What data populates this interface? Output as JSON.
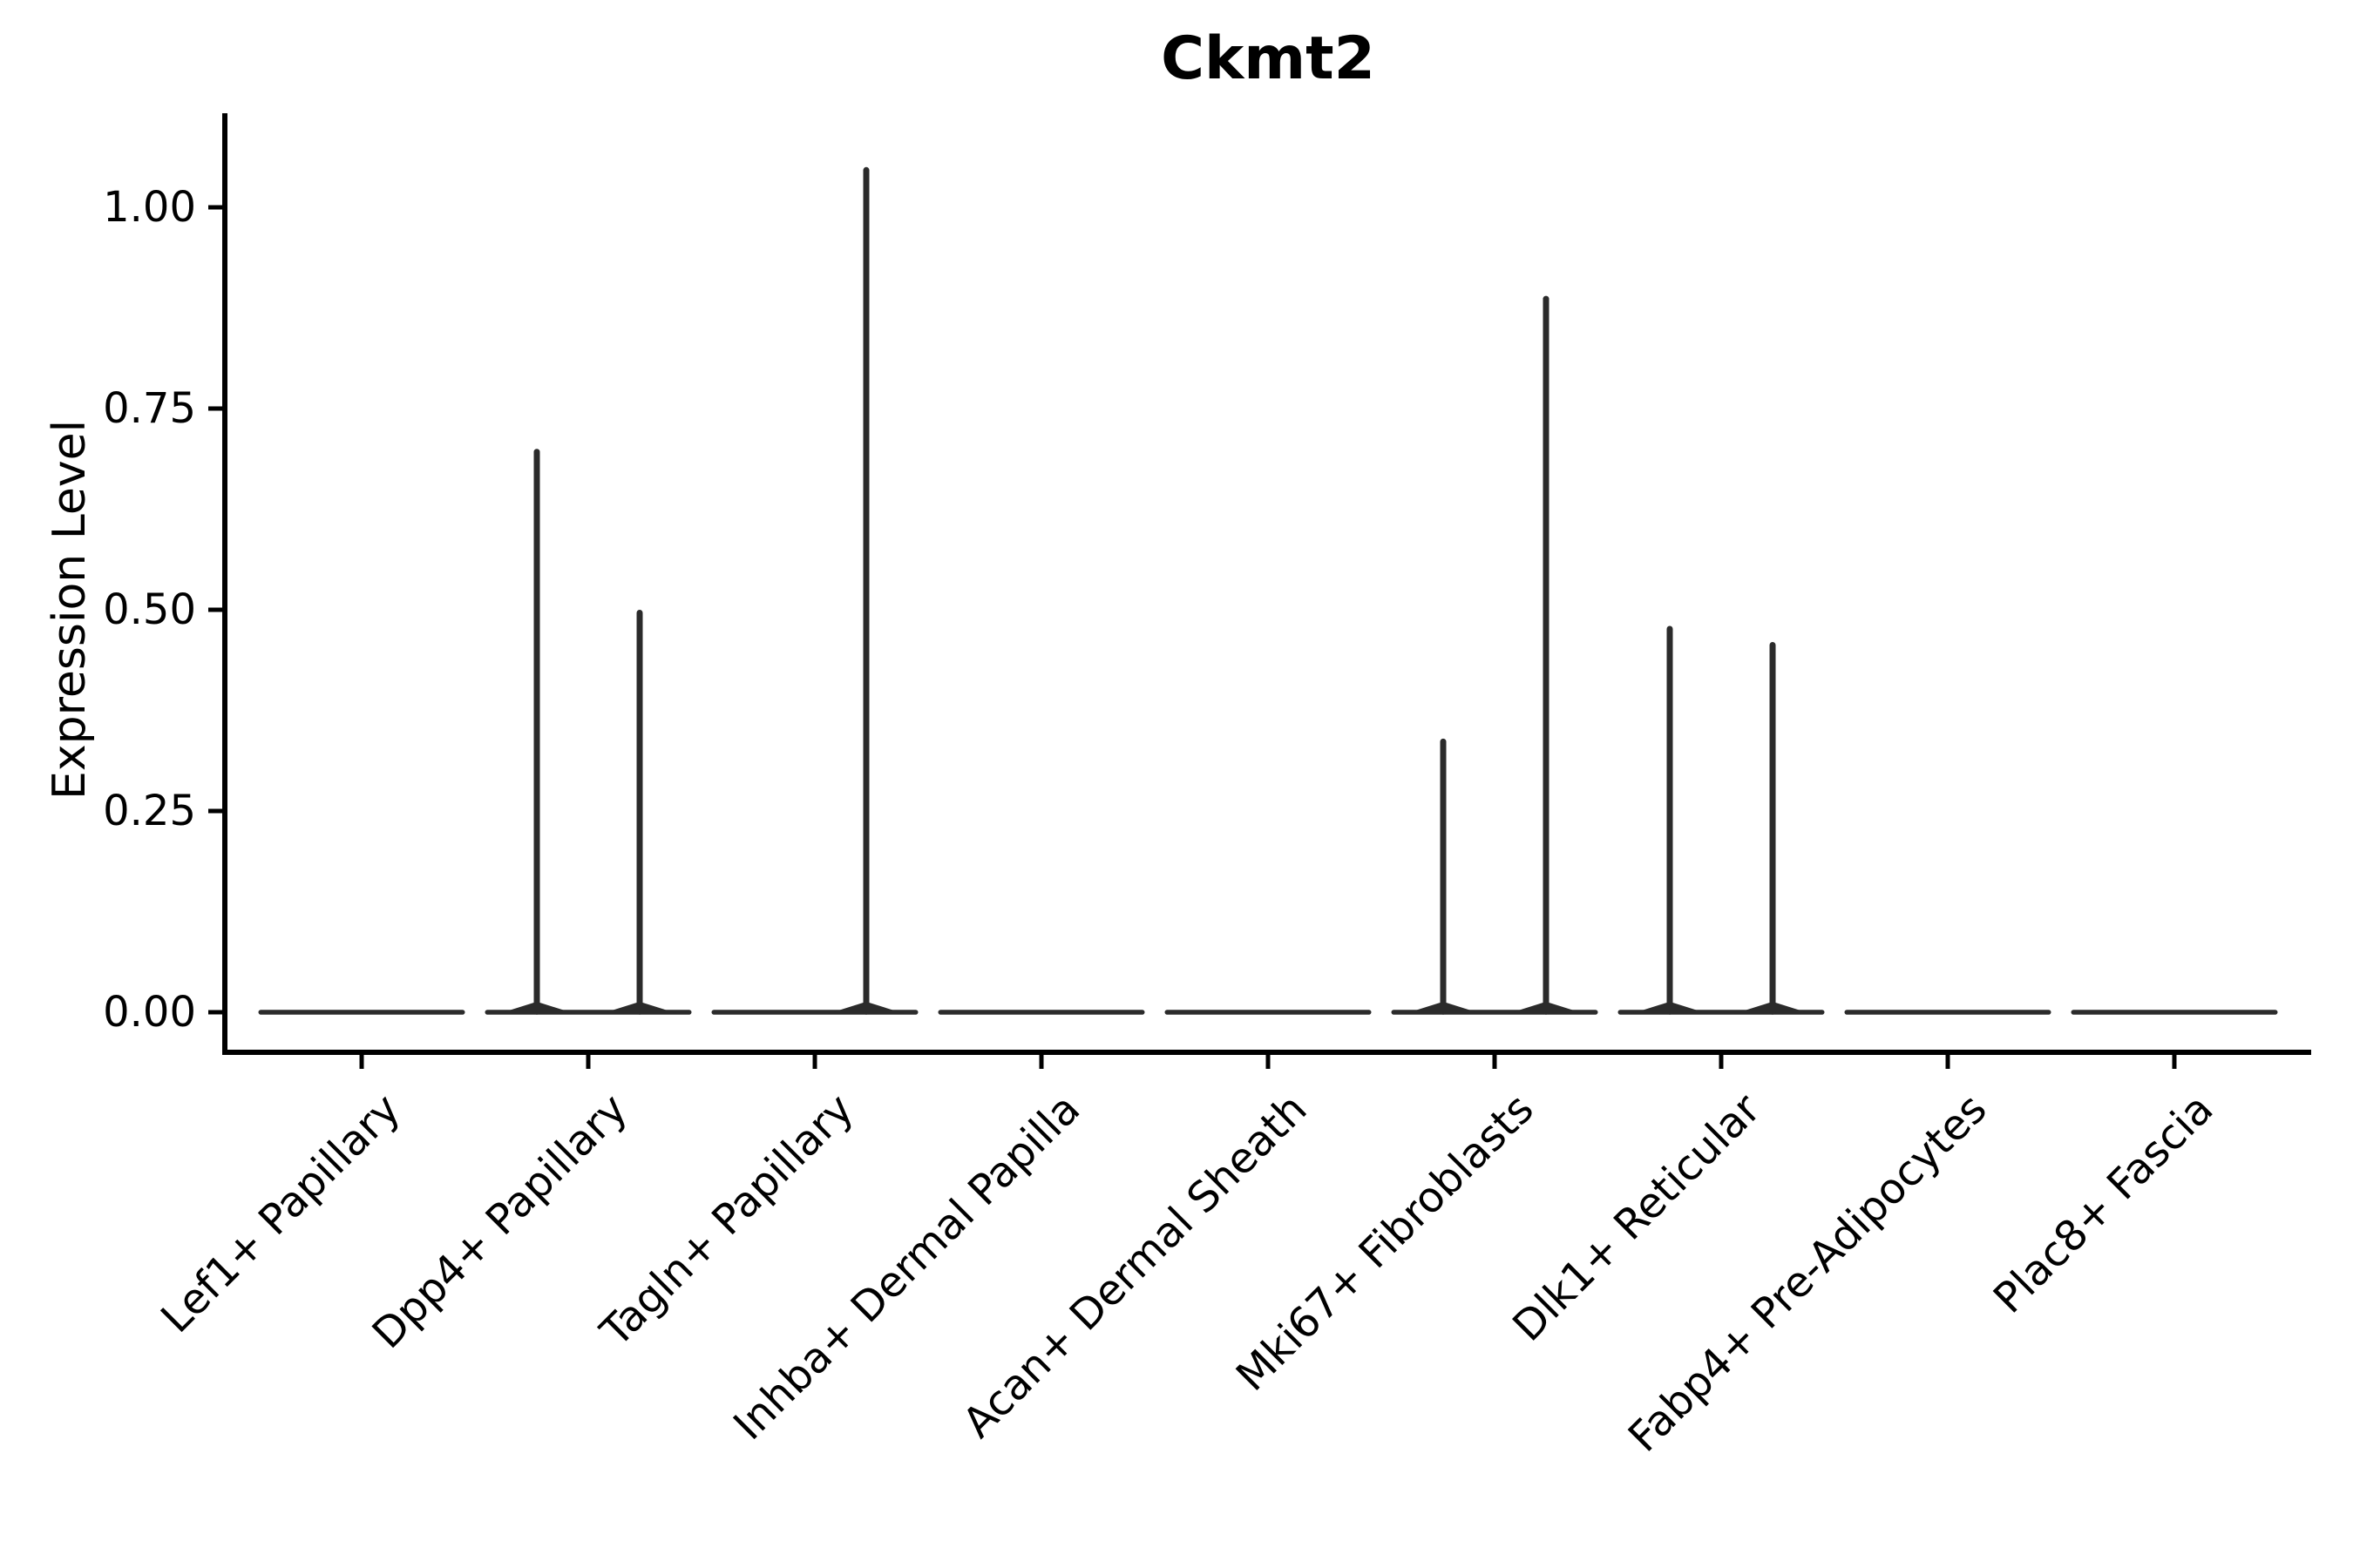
{
  "title": "Ckmt2",
  "y_axis": {
    "label": "Expression Level",
    "tick_labels": [
      "1.00",
      "0.75",
      "0.50",
      "0.25",
      "0.00"
    ]
  },
  "x_axis": {
    "tick_labels": [
      "Lef1+ Papillary",
      "Dpp4+ Papillary",
      "Tagln+ Papillary",
      "Inhba+ Dermal Papilla",
      "Acan+ Dermal Sheath",
      "Mki67+ Fibroblasts",
      "Dlk1+ Reticular",
      "Fabp4+ Pre-Adipocytes",
      "Plac8+ Fascia"
    ]
  },
  "colors": {
    "background": "#ffffff",
    "axis": "#000000",
    "violin_line": "#2b2b2b",
    "text": "#000000"
  },
  "chart_data": {
    "type": "violin",
    "title": "Ckmt2",
    "xlabel": "",
    "ylabel": "Expression Level",
    "ylim": [
      -0.05,
      1.12
    ],
    "yticks": [
      0.0,
      0.25,
      0.5,
      0.75,
      1.0
    ],
    "ytick_labels": [
      "0.00",
      "0.25",
      "0.50",
      "0.75",
      "1.00"
    ],
    "grid": false,
    "legend": "none",
    "categories": [
      "Lef1+ Papillary",
      "Dpp4+ Papillary",
      "Tagln+ Papillary",
      "Inhba+ Dermal Papilla",
      "Acan+ Dermal Sheath",
      "Mki67+ Fibroblasts",
      "Dlk1+ Reticular",
      "Fabp4+ Pre-Adipocytes",
      "Plac8+ Fascia"
    ],
    "description": "Each category shows a violin collapsed to a flat line at expression 0; thin vertical density spikes mark the maximum expression tail where expressing cells exist.",
    "violins": [
      {
        "category": "Lef1+ Papillary",
        "baseline": 0.0,
        "spikes": []
      },
      {
        "category": "Dpp4+ Papillary",
        "baseline": 0.0,
        "spikes": [
          {
            "side": "left",
            "max": 0.7
          },
          {
            "side": "right",
            "max": 0.5
          }
        ]
      },
      {
        "category": "Tagln+ Papillary",
        "baseline": 0.0,
        "spikes": [
          {
            "side": "right",
            "max": 1.05
          }
        ]
      },
      {
        "category": "Inhba+ Dermal Papilla",
        "baseline": 0.0,
        "spikes": []
      },
      {
        "category": "Acan+ Dermal Sheath",
        "baseline": 0.0,
        "spikes": []
      },
      {
        "category": "Mki67+ Fibroblasts",
        "baseline": 0.0,
        "spikes": [
          {
            "side": "left",
            "max": 0.34
          },
          {
            "side": "right",
            "max": 0.89
          }
        ]
      },
      {
        "category": "Dlk1+ Reticular",
        "baseline": 0.0,
        "spikes": [
          {
            "side": "left",
            "max": 0.48
          },
          {
            "side": "right",
            "max": 0.46
          }
        ]
      },
      {
        "category": "Fabp4+ Pre-Adipocytes",
        "baseline": 0.0,
        "spikes": []
      },
      {
        "category": "Plac8+ Fascia",
        "baseline": 0.0,
        "spikes": []
      }
    ]
  }
}
